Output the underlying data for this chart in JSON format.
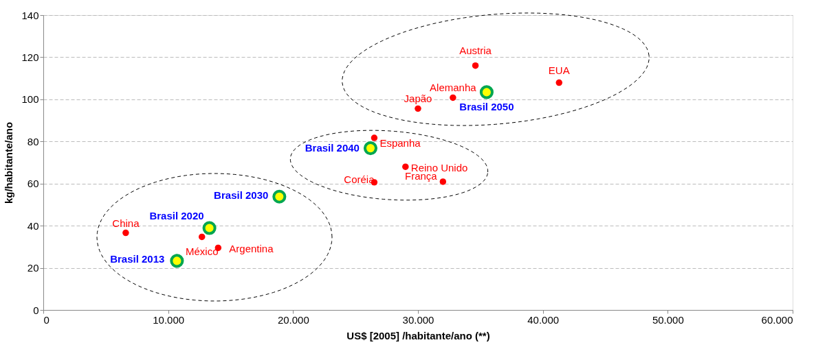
{
  "chart_data": {
    "type": "scatter",
    "xlabel": "US$ [2005] /habitante/ano (**)",
    "ylabel": "kg/habitante/ano",
    "xlim": [
      0,
      60000
    ],
    "ylim": [
      0,
      140
    ],
    "xticks": [
      0,
      {
        "value": 10000,
        "label": "10.000"
      },
      {
        "value": 20000,
        "label": "20.000"
      },
      {
        "value": 30000,
        "label": "30.000"
      },
      {
        "value": 40000,
        "label": "40.000"
      },
      {
        "value": 50000,
        "label": "50.000"
      },
      {
        "value": 60000,
        "label": "60.000"
      }
    ],
    "yticks": [
      0,
      20,
      40,
      60,
      80,
      100,
      120,
      140
    ],
    "grid": "y",
    "marker": "circle",
    "series": [
      {
        "color": "#ff0000",
        "x": [
          6600,
          12700,
          14000,
          26500,
          26500,
          29000,
          32000,
          30000,
          32800,
          34600,
          41300
        ],
        "values": [
          36.6,
          34.7,
          29.5,
          81.7,
          60.6,
          68,
          60.9,
          95.6,
          100.8,
          116,
          107.9
        ]
      },
      {
        "color": "#ffff00",
        "x": [
          10700,
          13300,
          18900,
          26200,
          35500
        ],
        "values": [
          23.3,
          38.9,
          53.8,
          76.8,
          103.4
        ]
      }
    ],
    "annotations": [
      {
        "text": "China",
        "x": 6600,
        "y": 36.6
      },
      {
        "text": "México",
        "x": 12700,
        "y": 34.7
      },
      {
        "text": "Argentina",
        "x": 14000,
        "y": 29.5
      },
      {
        "text": "Espanha",
        "x": 26500,
        "y": 81.7
      },
      {
        "text": "Coréia",
        "x": 26500,
        "y": 60.6
      },
      {
        "text": "Reino Unido",
        "x": 29000,
        "y": 68
      },
      {
        "text": "França",
        "x": 32000,
        "y": 60.9
      },
      {
        "text": "Japão",
        "x": 30000,
        "y": 95.6
      },
      {
        "text": "Alemanha",
        "x": 32800,
        "y": 100.8
      },
      {
        "text": "Austria",
        "x": 34600,
        "y": 116
      },
      {
        "text": "EUA",
        "x": 41300,
        "y": 107.9
      },
      {
        "text": "Brasil 2013",
        "x": 10700,
        "y": 23.3
      },
      {
        "text": "Brasil 2020",
        "x": 13300,
        "y": 38.9
      },
      {
        "text": "Brasil 2030",
        "x": 18900,
        "y": 53.8
      },
      {
        "text": "Brasil 2040",
        "x": 26200,
        "y": 76.8
      },
      {
        "text": "Brasil 2050",
        "x": 35500,
        "y": 103.4
      }
    ]
  }
}
